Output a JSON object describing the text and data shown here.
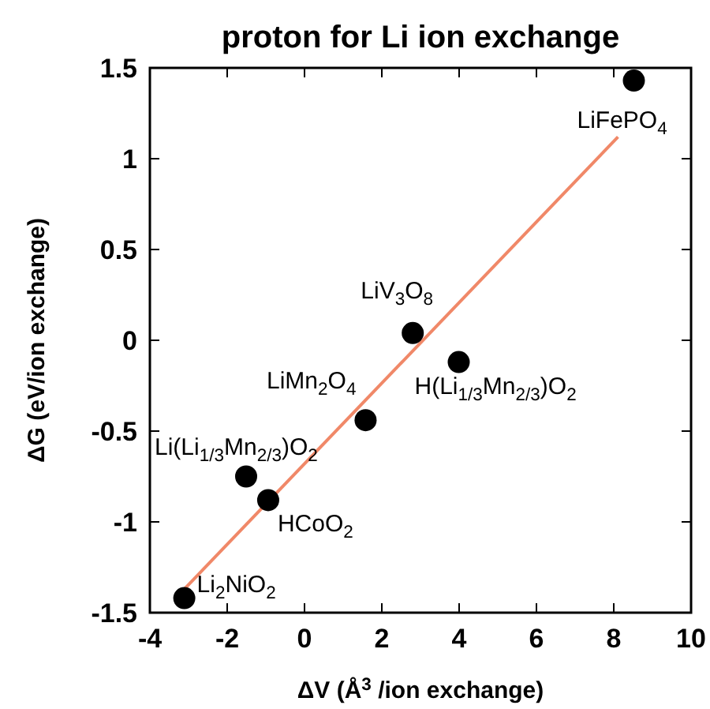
{
  "chart_data": {
    "type": "scatter",
    "title": "proton for Li ion exchange",
    "xlabel": "ΔV  (Å$^{3}$ /ion exchange)",
    "ylabel": "ΔG (eV/ion exchange)",
    "xlim": [
      -4,
      10
    ],
    "xticks": [
      -4,
      -2,
      0,
      2,
      4,
      6,
      8,
      10
    ],
    "ylim": [
      -1.5,
      1.5
    ],
    "yticks": [
      -1.5,
      -1,
      -0.5,
      0,
      0.5,
      1,
      1.5
    ],
    "grid": false,
    "marker": "circle",
    "series": [
      {
        "color": "#000000",
        "x": [
          -3.11,
          -1.51,
          -0.94,
          1.58,
          2.8,
          3.99,
          8.52
        ],
        "values": [
          -1.42,
          -0.75,
          -0.88,
          -0.44,
          0.04,
          -0.12,
          1.43
        ]
      },
      {
        "type": "line",
        "marker": "none",
        "color": "#f08868",
        "x": [
          -3.11,
          8.11
        ],
        "values": [
          -1.37,
          1.12
        ]
      }
    ],
    "annotations": [
      {
        "text": "Li$_{2}$NiO$_{2}$",
        "x": -3.11,
        "y": -1.42
      },
      {
        "text": "Li(Li$_{1/3}$Mn$_{2/3}$)O$_{2}$",
        "x": -1.51,
        "y": -0.75
      },
      {
        "text": "HCoO$_{2}$",
        "x": -0.94,
        "y": -0.88
      },
      {
        "text": "LiMn$_{2}$O$_{4}$",
        "x": 1.58,
        "y": -0.44
      },
      {
        "text": "LiV$_{3}$O$_{8}$",
        "x": 2.8,
        "y": 0.04
      },
      {
        "text": "H(Li$_{1/3}$Mn$_{2/3}$)O$_{2}$",
        "x": 3.99,
        "y": -0.12
      },
      {
        "text": "LiFePO$_{4}$",
        "x": 8.52,
        "y": 1.43
      }
    ]
  }
}
